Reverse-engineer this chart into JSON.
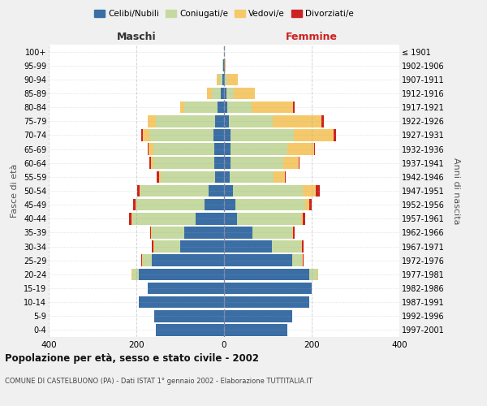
{
  "age_groups": [
    "0-4",
    "5-9",
    "10-14",
    "15-19",
    "20-24",
    "25-29",
    "30-34",
    "35-39",
    "40-44",
    "45-49",
    "50-54",
    "55-59",
    "60-64",
    "65-69",
    "70-74",
    "75-79",
    "80-84",
    "85-89",
    "90-94",
    "95-99",
    "100+"
  ],
  "birth_years": [
    "1997-2001",
    "1992-1996",
    "1987-1991",
    "1982-1986",
    "1977-1981",
    "1972-1976",
    "1967-1971",
    "1962-1966",
    "1957-1961",
    "1952-1956",
    "1947-1951",
    "1942-1946",
    "1937-1941",
    "1932-1936",
    "1927-1931",
    "1922-1926",
    "1917-1921",
    "1912-1916",
    "1907-1911",
    "1902-1906",
    "≤ 1901"
  ],
  "male": {
    "celibi": [
      155,
      160,
      195,
      175,
      195,
      165,
      100,
      90,
      65,
      45,
      35,
      20,
      22,
      22,
      25,
      20,
      15,
      8,
      3,
      1,
      0
    ],
    "coniugati": [
      0,
      0,
      0,
      0,
      15,
      20,
      60,
      75,
      145,
      155,
      155,
      125,
      140,
      140,
      145,
      135,
      75,
      20,
      8,
      2,
      0
    ],
    "vedovi": [
      0,
      0,
      0,
      0,
      2,
      2,
      2,
      2,
      2,
      2,
      3,
      3,
      5,
      10,
      15,
      20,
      10,
      10,
      5,
      1,
      0
    ],
    "divorziati": [
      0,
      0,
      0,
      0,
      0,
      2,
      2,
      2,
      5,
      5,
      5,
      5,
      3,
      3,
      3,
      0,
      0,
      0,
      0,
      0,
      0
    ]
  },
  "female": {
    "nubili": [
      145,
      155,
      195,
      200,
      195,
      155,
      110,
      65,
      30,
      25,
      20,
      13,
      15,
      15,
      15,
      12,
      8,
      5,
      2,
      1,
      0
    ],
    "coniugate": [
      0,
      0,
      0,
      0,
      18,
      22,
      65,
      90,
      145,
      160,
      160,
      100,
      120,
      130,
      145,
      100,
      55,
      18,
      5,
      1,
      0
    ],
    "vedove": [
      0,
      0,
      0,
      0,
      2,
      2,
      2,
      2,
      5,
      10,
      30,
      25,
      35,
      60,
      90,
      110,
      95,
      48,
      25,
      2,
      0
    ],
    "divorziate": [
      0,
      0,
      0,
      0,
      0,
      2,
      5,
      5,
      5,
      5,
      8,
      3,
      3,
      3,
      5,
      5,
      3,
      0,
      0,
      0,
      0
    ]
  },
  "colors": {
    "celibi": "#3A6EA5",
    "coniugati": "#C5D9A0",
    "vedovi": "#F5C96A",
    "divorziati": "#CC2222"
  },
  "xlim": 400,
  "title": "Popolazione per età, sesso e stato civile - 2002",
  "subtitle": "COMUNE DI CASTELBUONO (PA) - Dati ISTAT 1° gennaio 2002 - Elaborazione TUTTITALIA.IT",
  "ylabel_left": "Fasce di età",
  "ylabel_right": "Anni di nascita",
  "xlabel_left": "Maschi",
  "xlabel_right": "Femmine",
  "bg_color": "#f0f0f0",
  "plot_bg": "#ffffff",
  "bar_height": 0.85,
  "legend_labels": [
    "Celibi/Nubili",
    "Coniugati/e",
    "Vedovi/e",
    "Divorziati/e"
  ]
}
